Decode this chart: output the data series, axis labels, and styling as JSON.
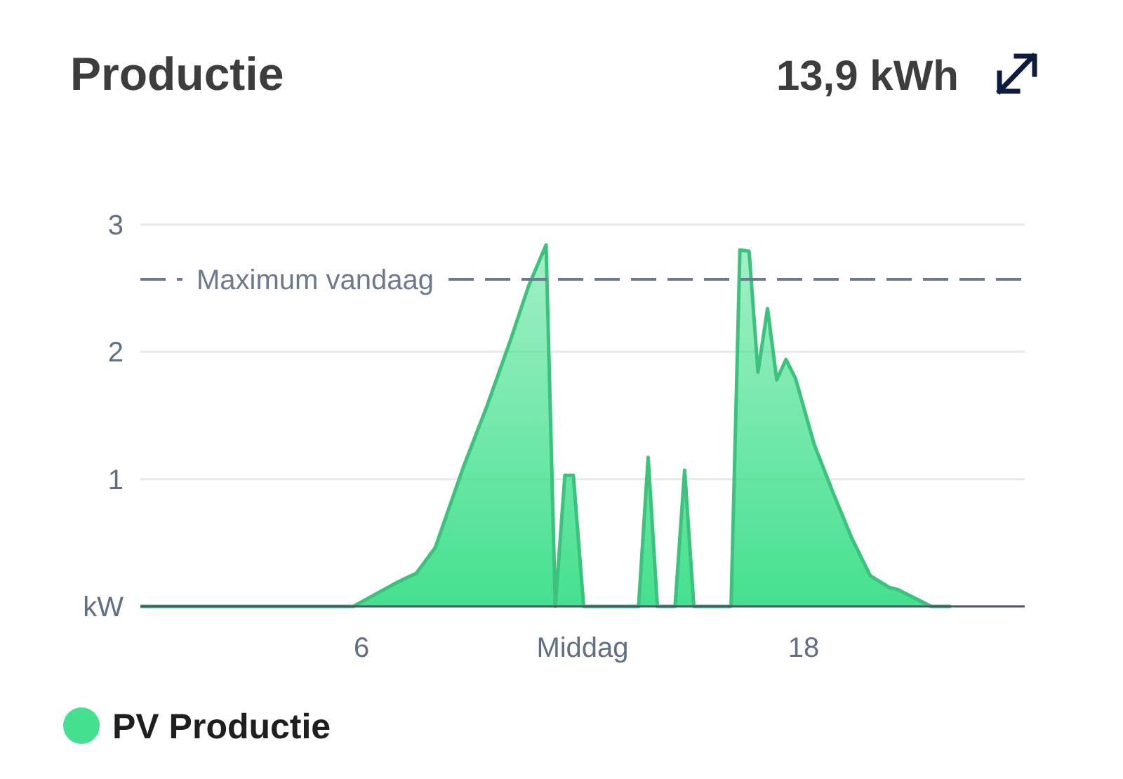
{
  "chart_data": {
    "type": "area",
    "title": "Productie",
    "annotations": [
      "13,9 kWh"
    ],
    "x": [
      0,
      5.78,
      6.98,
      7.49,
      8.0,
      8.76,
      9.4,
      10.03,
      10.54,
      11.01,
      11.26,
      11.52,
      11.75,
      12.03,
      13.52,
      13.78,
      14.03,
      14.51,
      14.77,
      15.02,
      16.03,
      16.27,
      16.52,
      16.76,
      17.02,
      17.27,
      17.52,
      17.78,
      18.29,
      18.79,
      19.3,
      19.81,
      20.32,
      20.57,
      21.46,
      22
    ],
    "series": [
      {
        "name": "PV Productie",
        "color": "#45e08f",
        "values": [
          0,
          0,
          0.19,
          0.26,
          0.46,
          1.09,
          1.57,
          2.08,
          2.52,
          2.84,
          0,
          1.03,
          1.03,
          0,
          0,
          1.17,
          0,
          0,
          1.07,
          0,
          0,
          2.8,
          2.79,
          1.84,
          2.34,
          1.78,
          1.94,
          1.79,
          1.27,
          0.9,
          0.54,
          0.24,
          0.15,
          0.13,
          0,
          0
        ]
      }
    ],
    "xlim": [
      0,
      24
    ],
    "xticks": [
      {
        "value": 6,
        "label": "6"
      },
      {
        "value": 12,
        "label": "Middag"
      },
      {
        "value": 18,
        "label": "18"
      }
    ],
    "ylim": [
      0,
      3
    ],
    "yticks": [
      {
        "value": 0,
        "label": "kW"
      },
      1,
      2,
      3
    ],
    "ref_lines": [
      {
        "axis": "y",
        "value": 2.57,
        "label": "Maximum vandaag",
        "color": "#6b7a90",
        "line_style": "dashed"
      }
    ],
    "grid": "y",
    "legend": "bottom"
  }
}
